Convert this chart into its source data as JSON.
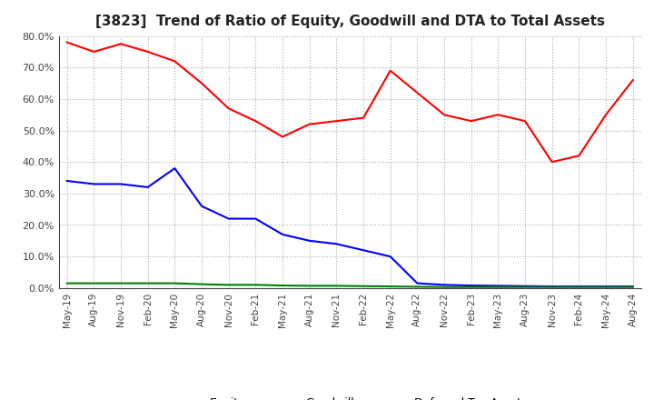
{
  "title": "[3823]  Trend of Ratio of Equity, Goodwill and DTA to Total Assets",
  "x_labels": [
    "May-19",
    "Aug-19",
    "Nov-19",
    "Feb-20",
    "May-20",
    "Aug-20",
    "Nov-20",
    "Feb-21",
    "May-21",
    "Aug-21",
    "Nov-21",
    "Feb-22",
    "May-22",
    "Aug-22",
    "Nov-22",
    "Feb-23",
    "May-23",
    "Aug-23",
    "Nov-23",
    "Feb-24",
    "May-24",
    "Aug-24"
  ],
  "equity": [
    78.0,
    75.0,
    77.5,
    75.0,
    72.0,
    65.0,
    57.0,
    53.0,
    48.0,
    52.0,
    53.0,
    54.0,
    69.0,
    62.0,
    55.0,
    53.0,
    55.0,
    53.0,
    40.0,
    42.0,
    55.0,
    66.0
  ],
  "goodwill": [
    34.0,
    33.0,
    33.0,
    32.0,
    38.0,
    26.0,
    22.0,
    22.0,
    17.0,
    15.0,
    14.0,
    12.0,
    10.0,
    1.5,
    1.0,
    0.8,
    0.7,
    0.6,
    0.5,
    0.5,
    0.5,
    0.5
  ],
  "dta": [
    1.5,
    1.5,
    1.5,
    1.5,
    1.5,
    1.2,
    1.0,
    1.0,
    0.8,
    0.7,
    0.7,
    0.6,
    0.5,
    0.4,
    0.3,
    0.3,
    0.3,
    0.3,
    0.3,
    0.3,
    0.3,
    0.3
  ],
  "equity_color": "#ff0000",
  "goodwill_color": "#0000ff",
  "dta_color": "#008000",
  "ylim": [
    0.0,
    80.0
  ],
  "yticks": [
    0.0,
    10.0,
    20.0,
    30.0,
    40.0,
    50.0,
    60.0,
    70.0,
    80.0
  ],
  "background_color": "#ffffff",
  "grid_color": "#aaaaaa",
  "title_fontsize": 11
}
